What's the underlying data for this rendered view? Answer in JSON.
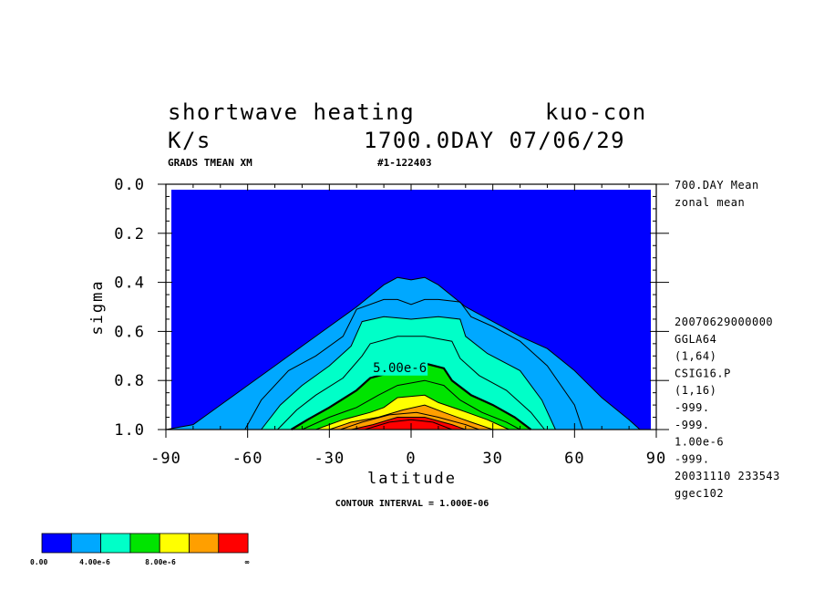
{
  "header": {
    "title_left": "shortwave heating",
    "title_right": "kuo-con",
    "units": "K/s",
    "time": "1700.0DAY 07/06/29",
    "label_left": "GRADS TMEAN XM",
    "label_mid": "#1-122403",
    "contour_interval": "CONTOUR INTERVAL = 1.000E-06"
  },
  "side_text": {
    "top": [
      "700.DAY Mean",
      "zonal mean"
    ],
    "bottom": [
      "20070629000000",
      "GGLA64",
      "(1,64)",
      "CSIG16.P",
      "(1,16)",
      "-999.",
      "-999.",
      "1.00e-6",
      "-999.",
      "20031110 233543",
      "ggec102"
    ]
  },
  "chart_data": {
    "type": "contour",
    "xlabel": "latitude",
    "ylabel": "sigma",
    "xlim": [
      -90,
      90
    ],
    "ylim": [
      1.0,
      0.0
    ],
    "x_ticks": [
      "-90",
      "-60",
      "-30",
      "0",
      "30",
      "60",
      "90"
    ],
    "y_ticks": [
      "0.0",
      "0.2",
      "0.4",
      "0.6",
      "0.8",
      "1.0"
    ],
    "contour_label": "5.00e-6",
    "contour_interval": 1e-06,
    "levels": [
      0,
      1e-06,
      2e-06,
      3e-06,
      4e-06,
      5e-06,
      6e-06,
      7e-06,
      8e-06,
      9e-06,
      1e-05,
      1.1e-05
    ],
    "level_colors": [
      "#0000ff",
      "#00a8ff",
      "#00a8ff",
      "#00ffc8",
      "#00ffc8",
      "#00e400",
      "#00e400",
      "#ffff00",
      "#ff9f00",
      "#ff9f00",
      "#ff0000",
      "#ff0000"
    ],
    "contours": [
      {
        "level": 1e-06,
        "points": [
          [
            -90,
            1.0
          ],
          [
            -80,
            0.98
          ],
          [
            -70,
            0.9
          ],
          [
            -60,
            0.82
          ],
          [
            -50,
            0.74
          ],
          [
            -40,
            0.66
          ],
          [
            -30,
            0.58
          ],
          [
            -20,
            0.5
          ],
          [
            -10,
            0.41
          ],
          [
            -5,
            0.38
          ],
          [
            0,
            0.39
          ],
          [
            5,
            0.38
          ],
          [
            10,
            0.41
          ],
          [
            20,
            0.5
          ],
          [
            30,
            0.56
          ],
          [
            40,
            0.62
          ],
          [
            50,
            0.67
          ],
          [
            60,
            0.76
          ],
          [
            70,
            0.87
          ],
          [
            80,
            0.96
          ],
          [
            84,
            1.0
          ]
        ]
      },
      {
        "level": 2e-06,
        "points": [
          [
            -61,
            1.0
          ],
          [
            -55,
            0.88
          ],
          [
            -45,
            0.76
          ],
          [
            -35,
            0.7
          ],
          [
            -25,
            0.62
          ],
          [
            -20,
            0.51
          ],
          [
            -10,
            0.47
          ],
          [
            -5,
            0.47
          ],
          [
            0,
            0.49
          ],
          [
            5,
            0.47
          ],
          [
            10,
            0.47
          ],
          [
            18,
            0.48
          ],
          [
            22,
            0.54
          ],
          [
            30,
            0.58
          ],
          [
            40,
            0.64
          ],
          [
            50,
            0.74
          ],
          [
            60,
            0.9
          ],
          [
            63,
            1.0
          ]
        ]
      },
      {
        "level": 3e-06,
        "points": [
          [
            -55,
            1.0
          ],
          [
            -48,
            0.9
          ],
          [
            -40,
            0.82
          ],
          [
            -30,
            0.74
          ],
          [
            -22,
            0.66
          ],
          [
            -18,
            0.56
          ],
          [
            -10,
            0.54
          ],
          [
            0,
            0.55
          ],
          [
            10,
            0.54
          ],
          [
            18,
            0.55
          ],
          [
            20,
            0.62
          ],
          [
            28,
            0.69
          ],
          [
            40,
            0.76
          ],
          [
            48,
            0.88
          ],
          [
            53,
            1.0
          ]
        ]
      },
      {
        "level": 4e-06,
        "points": [
          [
            -49,
            1.0
          ],
          [
            -42,
            0.92
          ],
          [
            -35,
            0.86
          ],
          [
            -25,
            0.79
          ],
          [
            -18,
            0.7
          ],
          [
            -15,
            0.65
          ],
          [
            -5,
            0.62
          ],
          [
            5,
            0.62
          ],
          [
            15,
            0.64
          ],
          [
            18,
            0.71
          ],
          [
            25,
            0.78
          ],
          [
            35,
            0.84
          ],
          [
            44,
            0.93
          ],
          [
            49,
            1.0
          ]
        ]
      },
      {
        "level": 5e-06,
        "points": [
          [
            -44,
            1.0
          ],
          [
            -38,
            0.96
          ],
          [
            -30,
            0.91
          ],
          [
            -20,
            0.84
          ],
          [
            -15,
            0.79
          ],
          [
            -5,
            0.76
          ],
          [
            5,
            0.73
          ],
          [
            12,
            0.75
          ],
          [
            15,
            0.8
          ],
          [
            22,
            0.86
          ],
          [
            30,
            0.9
          ],
          [
            38,
            0.95
          ],
          [
            44,
            1.0
          ]
        ]
      },
      {
        "level": 6e-06,
        "points": [
          [
            -40,
            1.0
          ],
          [
            -30,
            0.95
          ],
          [
            -20,
            0.91
          ],
          [
            -12,
            0.86
          ],
          [
            -5,
            0.82
          ],
          [
            5,
            0.8
          ],
          [
            12,
            0.82
          ],
          [
            18,
            0.88
          ],
          [
            26,
            0.93
          ],
          [
            35,
            0.97
          ],
          [
            40,
            1.0
          ]
        ]
      },
      {
        "level": 7e-06,
        "points": [
          [
            -35,
            1.0
          ],
          [
            -25,
            0.96
          ],
          [
            -15,
            0.93
          ],
          [
            -10,
            0.91
          ],
          [
            -5,
            0.87
          ],
          [
            5,
            0.86
          ],
          [
            10,
            0.89
          ],
          [
            18,
            0.92
          ],
          [
            28,
            0.96
          ],
          [
            36,
            1.0
          ]
        ]
      },
      {
        "level": 8e-06,
        "points": [
          [
            -30,
            1.0
          ],
          [
            -22,
            0.97
          ],
          [
            -12,
            0.95
          ],
          [
            -3,
            0.92
          ],
          [
            5,
            0.9
          ],
          [
            12,
            0.93
          ],
          [
            22,
            0.97
          ],
          [
            30,
            1.0
          ]
        ]
      },
      {
        "level": 9e-06,
        "points": [
          [
            -26,
            1.0
          ],
          [
            -18,
            0.97
          ],
          [
            -8,
            0.94
          ],
          [
            2,
            0.93
          ],
          [
            10,
            0.95
          ],
          [
            20,
            0.98
          ],
          [
            25,
            1.0
          ]
        ]
      },
      {
        "level": 1e-05,
        "points": [
          [
            -22,
            1.0
          ],
          [
            -14,
            0.98
          ],
          [
            -5,
            0.95
          ],
          [
            5,
            0.95
          ],
          [
            15,
            0.98
          ],
          [
            20,
            1.0
          ]
        ]
      },
      {
        "level": 1.1e-05,
        "points": [
          [
            -17,
            1.0
          ],
          [
            -8,
            0.97
          ],
          [
            0,
            0.96
          ],
          [
            8,
            0.97
          ],
          [
            15,
            1.0
          ]
        ]
      }
    ],
    "colorbar": {
      "colors": [
        "#0000ff",
        "#00a8ff",
        "#00ffc8",
        "#00e400",
        "#ffff00",
        "#ff9f00",
        "#ff0000"
      ],
      "labels": [
        "0.00",
        "4.00e-6",
        "8.00e-6",
        "∞"
      ]
    }
  }
}
